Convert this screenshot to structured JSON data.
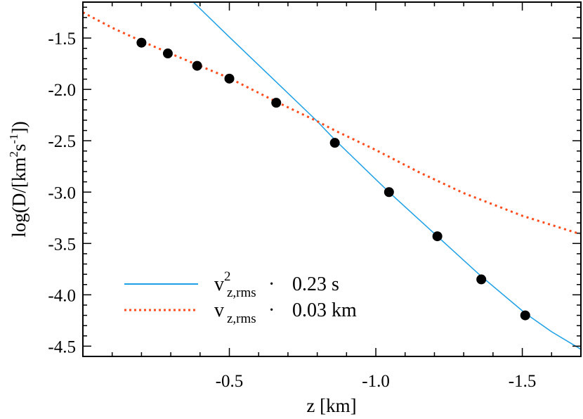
{
  "chart_data": {
    "type": "line",
    "xlabel": "z [km]",
    "ylabel": "log(D/[km²s⁻¹])",
    "ylabel_parts": {
      "prefix": "log(D/[km",
      "sup1": "2",
      "mid": "s",
      "sup2": "-1",
      "suffix": "])"
    },
    "xlim": [
      0,
      -1.7
    ],
    "ylim": [
      -4.6,
      -1.15
    ],
    "xticks": [
      -0.5,
      -1.0,
      -1.5
    ],
    "xtick_labels": [
      "-0.5",
      "-1.0",
      "-1.5"
    ],
    "yticks": [
      -1.5,
      -2.0,
      -2.5,
      -3.0,
      -3.5,
      -4.0,
      -4.5
    ],
    "ytick_labels": [
      "-1.5",
      "-2.0",
      "-2.5",
      "-3.0",
      "-3.5",
      "-4.0",
      "-4.5"
    ],
    "grid": false,
    "legend_position": "bottom-left",
    "points": {
      "x": [
        -0.2,
        -0.29,
        -0.39,
        -0.5,
        -0.66,
        -0.86,
        -1.045,
        -1.21,
        -1.36,
        -1.51
      ],
      "y": [
        -1.545,
        -1.65,
        -1.77,
        -1.895,
        -2.13,
        -2.52,
        -3.0,
        -3.43,
        -3.85,
        -4.2
      ],
      "color": "#000000"
    },
    "series": [
      {
        "legend": {
          "base": "v",
          "sup": "2",
          "sub": "z,rms",
          "dot": "·",
          "value": "0.23 s"
        },
        "style": "solid",
        "color": "#1ea0e6",
        "x": [
          -0.377,
          -0.5,
          -0.65,
          -0.8,
          -0.86,
          -1.045,
          -1.21,
          -1.36,
          -1.51,
          -1.6,
          -1.7
        ],
        "y": [
          -1.15,
          -1.49,
          -1.9,
          -2.31,
          -2.49,
          -3.0,
          -3.43,
          -3.82,
          -4.18,
          -4.36,
          -4.53
        ]
      },
      {
        "legend": {
          "base": "v",
          "sup": "",
          "sub": "z,rms",
          "dot": "·",
          "value": "0.03 km"
        },
        "style": "dotted",
        "color": "#ff4a1a",
        "x": [
          0,
          -0.1,
          -0.2,
          -0.29,
          -0.39,
          -0.5,
          -0.66,
          -0.8,
          -0.86,
          -1.0,
          -1.15,
          -1.3,
          -1.5,
          -1.7
        ],
        "y": [
          -1.25,
          -1.4,
          -1.53,
          -1.64,
          -1.76,
          -1.89,
          -2.12,
          -2.31,
          -2.4,
          -2.59,
          -2.81,
          -3.01,
          -3.23,
          -3.41
        ]
      }
    ]
  }
}
